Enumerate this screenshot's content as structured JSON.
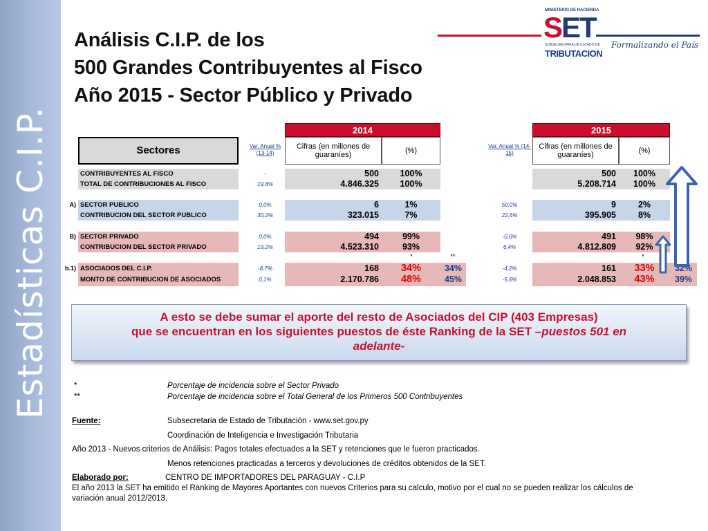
{
  "sidebar": {
    "text": "Estadísticas C.I.P."
  },
  "title": {
    "line1": "Análisis C.I.P. de los",
    "line2": "500 Grandes  Contribuyentes al Fisco",
    "line3": "Año 2015 - Sector Público y Privado"
  },
  "logo": {
    "ministry": "MINISTERIO DE HACIENDA",
    "set_s": "S",
    "set_et": "ET",
    "subtitle": "SUBSECRETARIA DE ESTADO DE",
    "tributacion": "TRIBUTACION",
    "slogan": "Formalizando el País"
  },
  "table": {
    "year_2014": "2014",
    "year_2015": "2015",
    "sectores_header": "Sectores",
    "var_2014_header": "Var. Anual % (13-14)",
    "var_2015_header": "Var. Anual % (14-15)",
    "cifras_header": "Cifras (en millones de guaraníes)",
    "pct_header": "(%)",
    "rows": [
      {
        "prefix": "",
        "label": "CONTRIBUYENTES AL FISCO",
        "var14": "-",
        "cifra14": "500",
        "pct14": "100%",
        "var15": "",
        "cifra15": "500",
        "pct15": "100%"
      },
      {
        "prefix": "",
        "label": "TOTAL DE CONTRIBUCIONES AL FISCO",
        "var14": "19,8%",
        "cifra14": "4.846.325",
        "pct14": "100%",
        "var15": "",
        "cifra15": "5.208.714",
        "pct15": "100%"
      },
      {
        "prefix": "A)",
        "label": "SECTOR PUBLICO",
        "var14": "0,0%",
        "cifra14": "6",
        "pct14": "1%",
        "var15": "50,0%",
        "cifra15": "9",
        "pct15": "2%"
      },
      {
        "prefix": "",
        "label": "CONTRIBUCION DEL SECTOR PUBLICO",
        "var14": "30,2%",
        "cifra14": "323.015",
        "pct14": "7%",
        "var15": "22,6%",
        "cifra15": "395.905",
        "pct15": "8%"
      },
      {
        "prefix": "B)",
        "label": "SECTOR PRIVADO",
        "var14": "0,0%",
        "cifra14": "494",
        "pct14": "99%",
        "var15": "-0,6%",
        "cifra15": "491",
        "pct15": "98%"
      },
      {
        "prefix": "",
        "label": "CONTRIBUCION DEL SECTOR PRIVADO",
        "var14": "19,2%",
        "cifra14": "4.523.310",
        "pct14": "93%",
        "var15": "6,4%",
        "cifra15": "4.812.809",
        "pct15": "92%"
      },
      {
        "prefix": "b.1)",
        "label": "ASOCIADOS DEL C.I.P.",
        "var14": "-8,7%",
        "cifra14": "168",
        "pct14": "34%",
        "pct14b": "34%",
        "var15": "-4,2%",
        "cifra15": "161",
        "pct15": "33%",
        "pct15b": "32%"
      },
      {
        "prefix": "",
        "label": "MONTO DE CONTRIBUCION DE ASOCIADOS",
        "var14": "0,1%",
        "cifra14": "2.170.786",
        "pct14": "48%",
        "pct14b": "45%",
        "var15": "-5,6%",
        "cifra15": "2.048.853",
        "pct15": "43%",
        "pct15b": "39%"
      }
    ],
    "star1": "*",
    "star2": "**"
  },
  "callout": {
    "line1": "A esto se debe sumar el aporte del resto de Asociados del CIP (403 Empresas)",
    "line2": "que se encuentran en los siguientes puestos de éste Ranking de la SET –",
    "line2_italic": "puestos 501 en",
    "line3_italic": "adelante",
    "line3_end": "-"
  },
  "notes": {
    "star1": "*",
    "star1_text": "Porcentaje de incidencia sobre el Sector Privado",
    "star2": "**",
    "star2_text": "Porcentaje de incidencia sobre el Total General de los Primeros 500 Contribuyentes",
    "fuente_label": "Fuente:",
    "fuente_text": "Subsecretaria de Estado de Tributación - www.set.gov.py",
    "coord_text": "Coordinación de Inteligencia e Investigación Tributaria",
    "criterios_text": "Año 2013 - Nuevos criterios de Análisis: Pagos totales efectuados a la SET y retenciones que le fueron practicados.",
    "menos_text": "Menos retenciones practicadas a terceros y devoluciones de créditos obtenidos de la SET.",
    "elaborado_label": "Elaborado por:",
    "elaborado_text": "CENTRO DE IMPORTADORES DEL PARAGUAY - C.I.P",
    "ranking_line1": "El año 2013 la SET ha emitido el Ranking de Mayores Aportantes con nuevos Criterios para su calculo, motivo por el cual no se pueden realizar los cálculos de",
    "ranking_line2": "variación anual 2012/2013."
  },
  "colors": {
    "accent_red": "#c8102e",
    "navy": "#1f3b78",
    "sidebar": "#a9bcdc"
  }
}
